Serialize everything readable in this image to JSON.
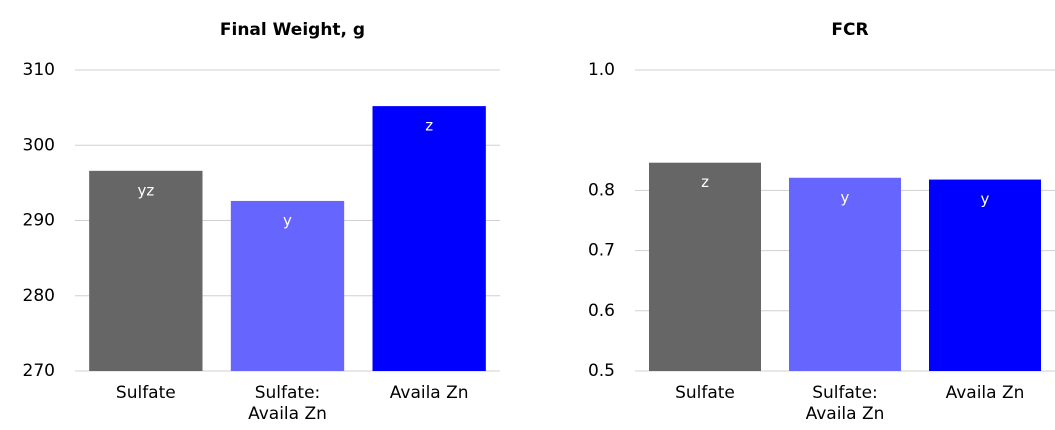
{
  "chart_data": [
    {
      "type": "bar",
      "title": "Final Weight, g",
      "categories": [
        "Sulfate",
        "Sulfate: Availa Zn",
        "Availa Zn"
      ],
      "values": [
        296.6,
        292.6,
        305.2
      ],
      "annotations": [
        "yz",
        "y",
        "z"
      ],
      "colors": [
        "#666666",
        "#6666ff",
        "#0000ff"
      ],
      "ylim": [
        270,
        310
      ],
      "yticks": [
        270,
        280,
        290,
        300,
        310
      ],
      "grid": true
    },
    {
      "type": "bar",
      "title": "FCR",
      "categories": [
        "Sulfate",
        "Sulfate: Availa Zn",
        "Availa Zn"
      ],
      "values": [
        0.846,
        0.821,
        0.818
      ],
      "annotations": [
        "z",
        "y",
        "y"
      ],
      "colors": [
        "#666666",
        "#6666ff",
        "#0000ff"
      ],
      "ylim": [
        0.5,
        1.0
      ],
      "yticks": [
        0.5,
        0.6,
        0.7,
        0.8,
        {
          "value": 1.0,
          "label": "1.0"
        }
      ],
      "grid": true
    }
  ]
}
